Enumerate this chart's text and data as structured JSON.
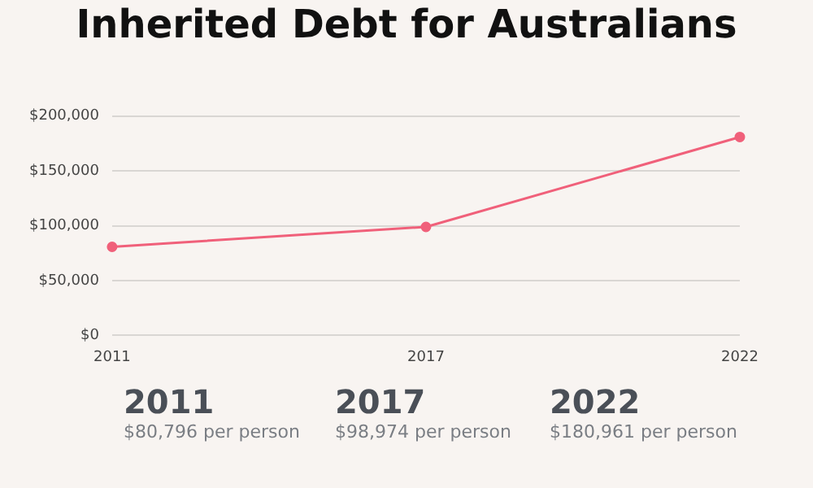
{
  "chart_data": {
    "type": "line",
    "title": "Inherited Debt for Australians",
    "categories": [
      "2011",
      "2017",
      "2022"
    ],
    "series": [
      {
        "color": "#f0607a",
        "values": [
          80796,
          98974,
          180961
        ]
      }
    ],
    "ylim": [
      0,
      200000
    ],
    "yticks": [
      {
        "value": 0,
        "label": "$0"
      },
      {
        "value": 50000,
        "label": "$50,000"
      },
      {
        "value": 100000,
        "label": "$100,000"
      },
      {
        "value": 150000,
        "label": "$150,000"
      },
      {
        "value": 200000,
        "label": "$200,000"
      }
    ],
    "grid": "y",
    "marker": "circle",
    "line_style": "solid",
    "legend": false,
    "annotations": [
      "2011",
      "$80,796 per person",
      "2017",
      "$98,974 per person",
      "2022",
      "$180,961 per person"
    ]
  }
}
